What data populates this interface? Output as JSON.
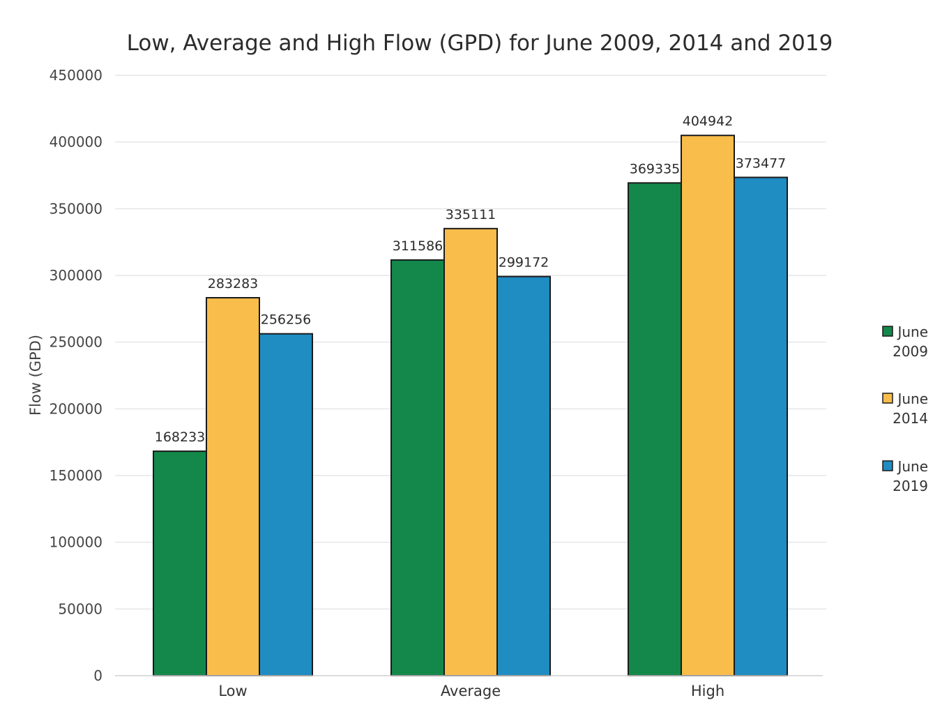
{
  "chart_data": {
    "type": "bar",
    "title": "Low, Average and High Flow (GPD) for June 2009, 2014 and 2019",
    "xlabel": "",
    "ylabel": "Flow (GPD)",
    "ylim": [
      0,
      450000
    ],
    "yticks": [
      0,
      50000,
      100000,
      150000,
      200000,
      250000,
      300000,
      350000,
      400000,
      450000
    ],
    "grid": true,
    "legend_position": "right",
    "categories": [
      "Low",
      "Average",
      "High"
    ],
    "series": [
      {
        "name": "June 2009",
        "legend_lines": [
          "June",
          "2009"
        ],
        "color": "#13884a",
        "values": [
          168233,
          311586,
          369335
        ]
      },
      {
        "name": "June 2014",
        "legend_lines": [
          "June",
          "2014"
        ],
        "color": "#f9bd4b",
        "values": [
          283283,
          335111,
          404942
        ]
      },
      {
        "name": "June 2019",
        "legend_lines": [
          "June",
          "2019"
        ],
        "color": "#1f8cc2",
        "values": [
          256256,
          299172,
          373477
        ]
      }
    ]
  }
}
